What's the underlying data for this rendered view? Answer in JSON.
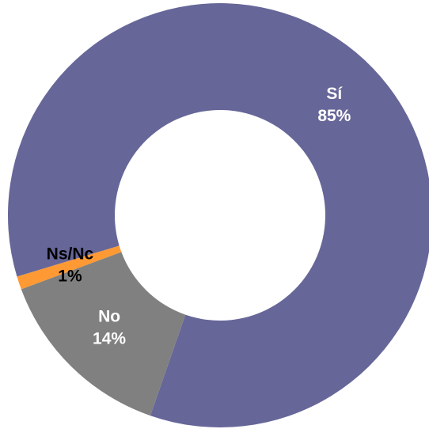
{
  "chart_data": {
    "type": "donut",
    "categories": [
      "Sí",
      "No",
      "Ns/Nc"
    ],
    "values": [
      85,
      14,
      1
    ],
    "value_labels": [
      "85%",
      "14%",
      "1%"
    ],
    "colors": [
      "#666699",
      "#808080",
      "#ff9933"
    ]
  }
}
